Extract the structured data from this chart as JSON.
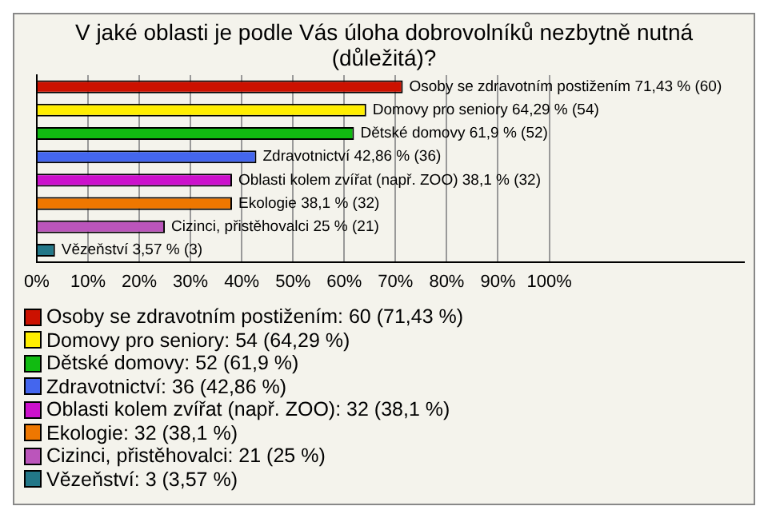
{
  "chart_data": {
    "type": "bar",
    "orientation": "horizontal",
    "title": "V jaké oblasti je podle Vás úloha dobrovolníků nezbytně nutná (důležitá)?",
    "categories": [
      "Osoby se zdravotním postižením",
      "Domovy pro seniory",
      "Dětské domovy",
      "Zdravotnictví",
      "Oblasti kolem zvířat (např. ZOO)",
      "Ekologie",
      "Cizinci, přistěhovalci",
      "Vězeňství"
    ],
    "values": [
      71.43,
      64.29,
      61.9,
      42.86,
      38.1,
      38.1,
      25,
      3.57
    ],
    "value_labels": [
      "71,43 % (60)",
      "64,29 % (54)",
      "61,9 % (52)",
      "42,86 % (36)",
      "38,1 % (32)",
      "38,1 % (32)",
      "25 % (21)",
      "3,57 % (3)"
    ],
    "colors": [
      "#cc1100",
      "#ffee00",
      "#11bb11",
      "#4466ee",
      "#cc11cc",
      "#ee7700",
      "#bb55bb",
      "#227788"
    ],
    "xlim": [
      0,
      138
    ],
    "xticks": [
      {
        "value": 0,
        "label": "0%"
      },
      {
        "value": 10,
        "label": "10%"
      },
      {
        "value": 20,
        "label": "20%"
      },
      {
        "value": 30,
        "label": "30%"
      },
      {
        "value": 40,
        "label": "40%"
      },
      {
        "value": 50,
        "label": "50%"
      },
      {
        "value": 60,
        "label": "60%"
      },
      {
        "value": 70,
        "label": "70%"
      },
      {
        "value": 80,
        "label": "80%"
      },
      {
        "value": 90,
        "label": "90%"
      },
      {
        "value": 100,
        "label": "100%"
      }
    ],
    "grid": "x",
    "annotations": [
      "Osoby se zdravotním postižením: 60 (71,43 %)",
      "Domovy pro seniory: 54 (64,29 %)",
      "Dětské domovy: 52 (61,9 %)",
      "Zdravotnictví: 36 (42,86 %)",
      "Oblasti kolem zvířat (např. ZOO): 32 (38,1 %)",
      "Ekologie: 32 (38,1 %)",
      "Cizinci, přistěhovalci: 21 (25 %)",
      "Vězeňství: 3 (3,57 %)"
    ]
  }
}
